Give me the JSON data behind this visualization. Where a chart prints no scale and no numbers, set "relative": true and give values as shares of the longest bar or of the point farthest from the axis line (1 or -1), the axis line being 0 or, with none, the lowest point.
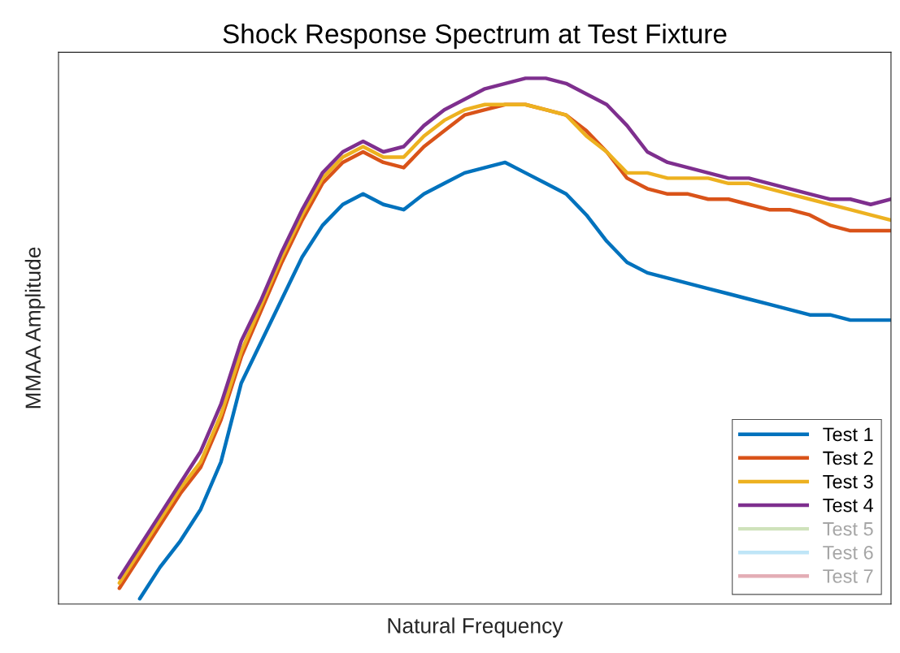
{
  "chart_data": {
    "type": "line",
    "title": "Shock Response Spectrum at Test Fixture",
    "xlabel": "Natural Frequency",
    "ylabel": "MMAA Amplitude",
    "relative": true,
    "legend": "bottom right",
    "tick_labels": false,
    "line_style": "solid",
    "categories": [
      null,
      null,
      null,
      null,
      null,
      null,
      null,
      null,
      null,
      null,
      null,
      null,
      null,
      null,
      null,
      null,
      null,
      null,
      null,
      null,
      null,
      null,
      null,
      null,
      null,
      null,
      null,
      null,
      null,
      null,
      null,
      null,
      null,
      null,
      null,
      null,
      null,
      null,
      null,
      null,
      null,
      null
    ],
    "series": [
      {
        "name": "Test 1",
        "color": "#0072bd",
        "values": [
          null,
          null,
          null,
          null,
          0.01,
          0.07,
          0.12,
          0.18,
          0.27,
          0.42,
          0.5,
          0.58,
          0.66,
          0.72,
          0.76,
          0.78,
          0.76,
          0.75,
          0.78,
          0.8,
          0.82,
          0.83,
          0.84,
          0.82,
          0.8,
          0.78,
          0.74,
          0.69,
          0.65,
          0.63,
          0.62,
          0.61,
          0.6,
          0.59,
          0.58,
          0.57,
          0.56,
          0.55,
          0.55,
          0.54,
          0.54,
          0.54
        ]
      },
      {
        "name": "Test 2",
        "color": "#d95319",
        "values": [
          null,
          null,
          null,
          0.03,
          0.09,
          0.15,
          0.21,
          0.26,
          0.35,
          0.47,
          0.56,
          0.65,
          0.73,
          0.8,
          0.84,
          0.86,
          0.84,
          0.83,
          0.87,
          0.9,
          0.93,
          0.94,
          0.95,
          0.95,
          0.94,
          0.93,
          0.9,
          0.86,
          0.81,
          0.79,
          0.78,
          0.78,
          0.77,
          0.77,
          0.76,
          0.75,
          0.75,
          0.74,
          0.72,
          0.71,
          0.71,
          0.71
        ]
      },
      {
        "name": "Test 3",
        "color": "#edb120",
        "values": [
          null,
          null,
          null,
          0.04,
          0.1,
          0.16,
          0.22,
          0.27,
          0.36,
          0.48,
          0.57,
          0.66,
          0.74,
          0.81,
          0.85,
          0.87,
          0.85,
          0.85,
          0.89,
          0.92,
          0.94,
          0.95,
          0.95,
          0.95,
          0.94,
          0.93,
          0.89,
          0.86,
          0.82,
          0.82,
          0.81,
          0.81,
          0.81,
          0.8,
          0.8,
          0.79,
          0.78,
          0.77,
          0.76,
          0.75,
          0.74,
          0.73
        ]
      },
      {
        "name": "Test 4",
        "color": "#7e2f8e",
        "values": [
          null,
          null,
          null,
          0.05,
          0.11,
          0.17,
          0.23,
          0.29,
          0.38,
          0.5,
          0.58,
          0.67,
          0.75,
          0.82,
          0.86,
          0.88,
          0.86,
          0.87,
          0.91,
          0.94,
          0.96,
          0.98,
          0.99,
          1.0,
          1.0,
          0.99,
          0.97,
          0.95,
          0.91,
          0.86,
          0.84,
          0.83,
          0.82,
          0.81,
          0.81,
          0.8,
          0.79,
          0.78,
          0.77,
          0.77,
          0.76,
          0.77
        ]
      },
      {
        "name": "Test 5",
        "color": "#cfe2bb",
        "values": [
          null,
          null,
          null,
          null,
          null,
          null,
          null,
          null,
          null,
          null,
          null,
          null,
          null,
          null,
          null,
          null,
          null,
          null,
          null,
          null,
          null,
          null,
          null,
          null,
          null,
          null,
          null,
          null,
          null,
          null,
          null,
          null,
          null,
          null,
          null,
          null,
          null,
          null,
          null,
          null,
          null,
          null
        ]
      },
      {
        "name": "Test 6",
        "color": "#bfe5f7",
        "values": [
          null,
          null,
          null,
          null,
          null,
          null,
          null,
          null,
          null,
          null,
          null,
          null,
          null,
          null,
          null,
          null,
          null,
          null,
          null,
          null,
          null,
          null,
          null,
          null,
          null,
          null,
          null,
          null,
          null,
          null,
          null,
          null,
          null,
          null,
          null,
          null,
          null,
          null,
          null,
          null,
          null,
          null
        ]
      },
      {
        "name": "Test 7",
        "color": "#e3adb5",
        "values": [
          null,
          null,
          null,
          null,
          null,
          null,
          null,
          null,
          null,
          null,
          null,
          null,
          null,
          null,
          null,
          null,
          null,
          null,
          null,
          null,
          null,
          null,
          null,
          null,
          null,
          null,
          null,
          null,
          null,
          null,
          null,
          null,
          null,
          null,
          null,
          null,
          null,
          null,
          null,
          null,
          null,
          null
        ]
      }
    ]
  }
}
